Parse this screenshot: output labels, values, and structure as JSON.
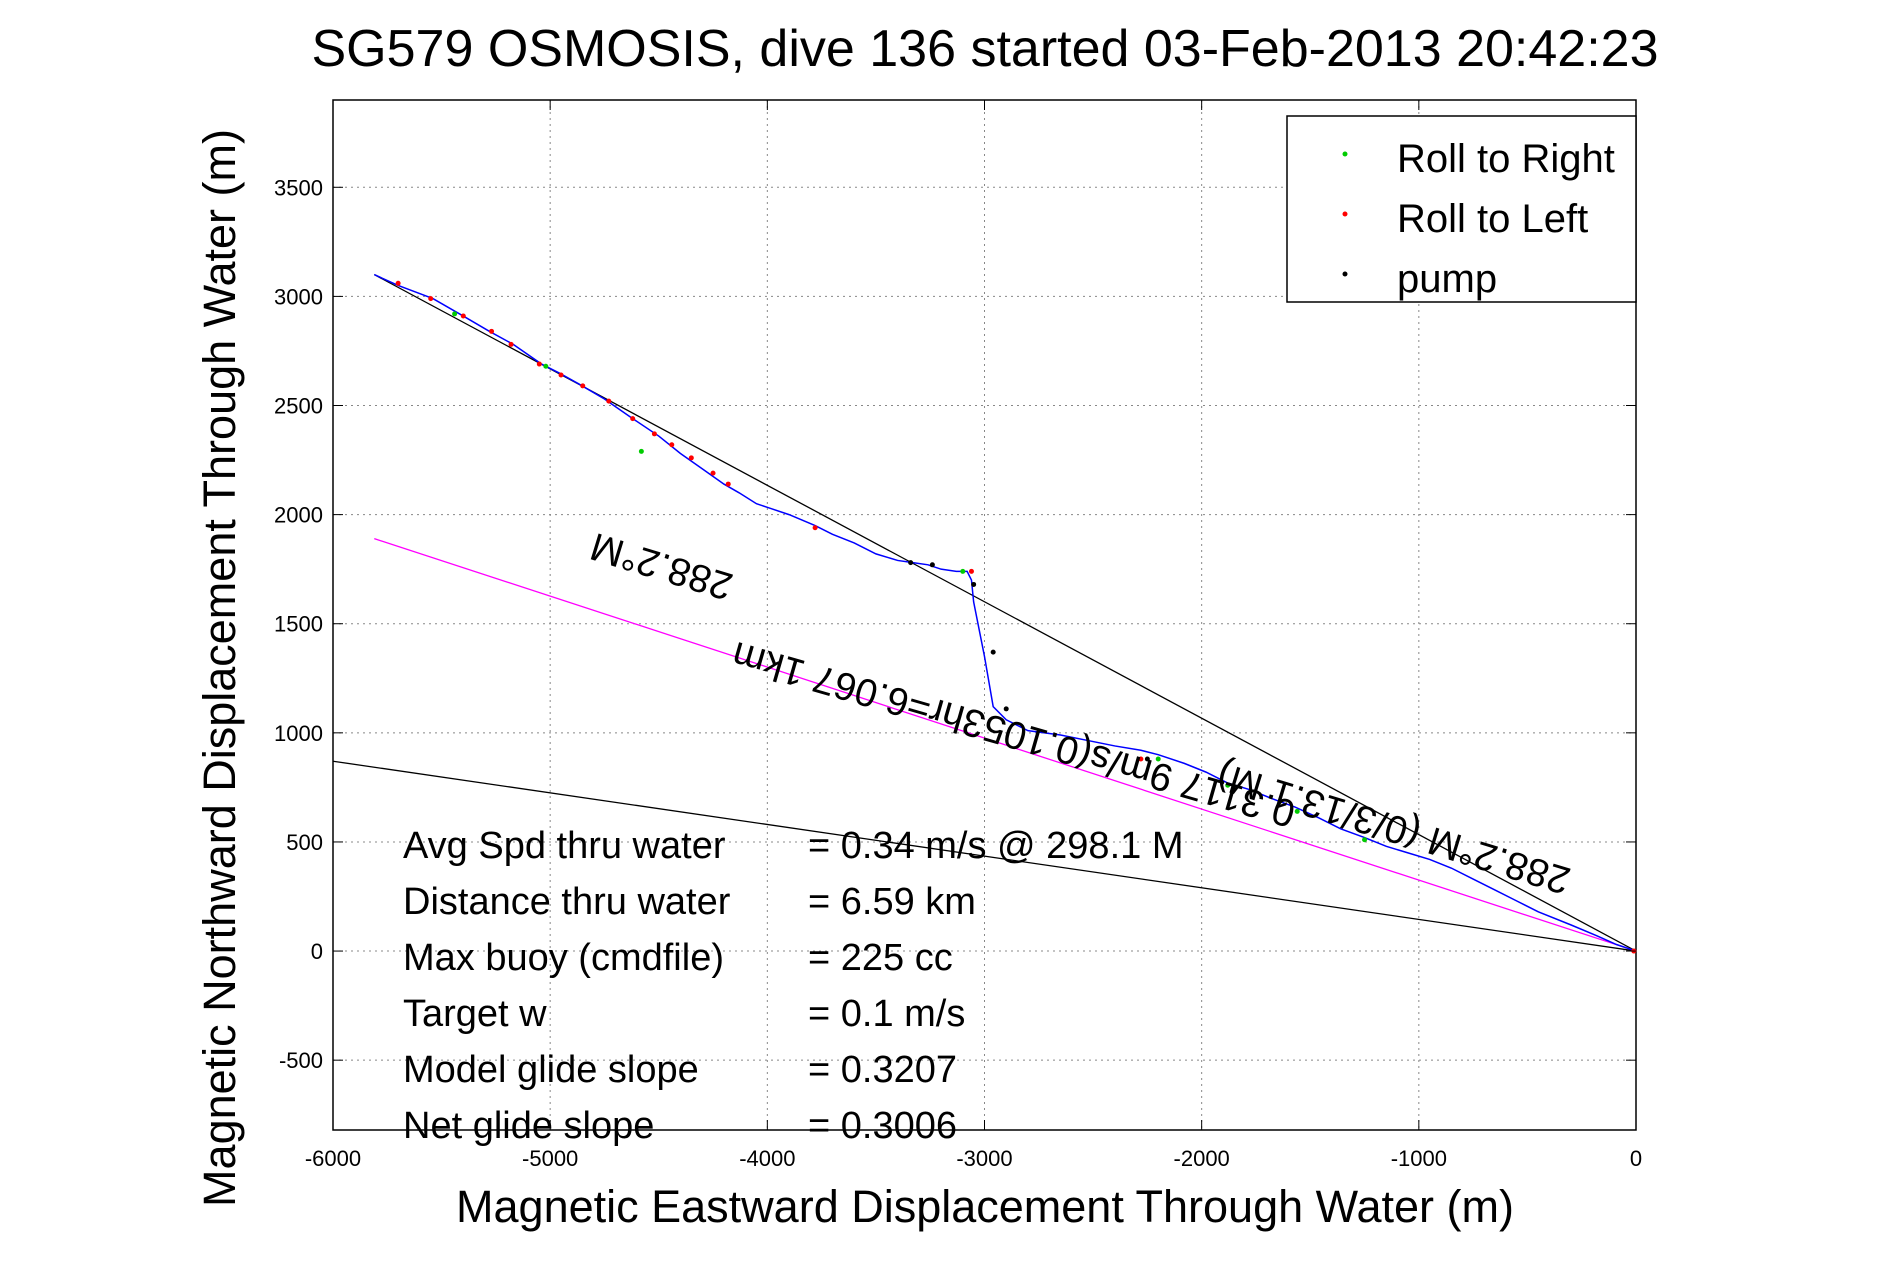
{
  "chart_data": {
    "type": "line",
    "title": "SG579 OSMOSIS, dive 136 started 03-Feb-2013 20:42:23",
    "xlabel": "Magnetic Eastward Displacement Through Water (m)",
    "ylabel": "Magnetic Northward Displacement Through Water (m)",
    "xlim": [
      -6000,
      0
    ],
    "ylim": [
      -820,
      3900
    ],
    "xticks": [
      -6000,
      -5000,
      -4000,
      -3000,
      -2000,
      -1000,
      0
    ],
    "yticks": [
      -500,
      0,
      500,
      1000,
      1500,
      2000,
      2500,
      3000,
      3500
    ],
    "xtick_labels": [
      "-6000",
      "-5000",
      "-4000",
      "-3000",
      "-2000",
      "-1000",
      "0"
    ],
    "ytick_labels": [
      "-500",
      "0",
      "500",
      "1000",
      "1500",
      "2000",
      "2500",
      "3000",
      "3500"
    ],
    "grid": true,
    "legend_position": "top-right",
    "legend": [
      {
        "label": "Roll to Right",
        "color": "#00cc00"
      },
      {
        "label": "Roll to Left",
        "color": "#ff0000"
      },
      {
        "label": "pump",
        "color": "#000000"
      }
    ],
    "track": {
      "color": "#0000ff",
      "x": [
        -5810,
        -5700,
        -5540,
        -5400,
        -5280,
        -5170,
        -5040,
        -4960,
        -4870,
        -4750,
        -4620,
        -4500,
        -4400,
        -4300,
        -4200,
        -4130,
        -4050,
        -3990,
        -3900,
        -3780,
        -3700,
        -3600,
        -3500,
        -3400,
        -3330,
        -3260,
        -3200,
        -3130,
        -3080,
        -3060,
        -3050,
        -3000,
        -2960,
        -2900,
        -2800,
        -2650,
        -2500,
        -2400,
        -2280,
        -2200,
        -2080,
        -1980,
        -1880,
        -1780,
        -1680,
        -1570,
        -1460,
        -1360,
        -1250,
        -1150,
        -1050,
        -950,
        -850,
        -750,
        -650,
        -550,
        -450,
        -300,
        -180,
        -90,
        0
      ],
      "y": [
        3100,
        3050,
        2990,
        2910,
        2840,
        2780,
        2690,
        2650,
        2600,
        2530,
        2440,
        2360,
        2280,
        2210,
        2140,
        2100,
        2050,
        2030,
        2000,
        1950,
        1910,
        1870,
        1820,
        1790,
        1780,
        1770,
        1750,
        1740,
        1740,
        1700,
        1600,
        1350,
        1120,
        1060,
        1010,
        990,
        960,
        940,
        920,
        900,
        860,
        820,
        770,
        740,
        700,
        660,
        610,
        560,
        520,
        480,
        450,
        420,
        380,
        330,
        280,
        230,
        180,
        120,
        70,
        30,
        0
      ]
    },
    "roll_right_points": {
      "color": "#00cc00",
      "x": [
        -5440,
        -5020,
        -4580,
        -3100,
        -2200,
        -1880,
        -1560,
        -1250
      ],
      "y": [
        2920,
        2680,
        2290,
        1740,
        880,
        760,
        640,
        510
      ]
    },
    "roll_left_points": {
      "color": "#ff0000",
      "x": [
        -5700,
        -5550,
        -5400,
        -5270,
        -5180,
        -5050,
        -4950,
        -4850,
        -4730,
        -4620,
        -4520,
        -4440,
        -4350,
        -4250,
        -4180,
        -3780,
        -3060,
        -2280,
        -10
      ],
      "y": [
        3060,
        2990,
        2910,
        2840,
        2780,
        2690,
        2640,
        2590,
        2520,
        2440,
        2370,
        2320,
        2260,
        2190,
        2140,
        1940,
        1740,
        880,
        0
      ]
    },
    "pump_points": {
      "color": "#000000",
      "x": [
        -3340,
        -3240,
        -3050,
        -2960,
        -2900,
        -2250
      ],
      "y": [
        1780,
        1770,
        1680,
        1370,
        1110,
        880
      ]
    },
    "reference_lines": [
      {
        "color": "#000000",
        "x": [
          -5810,
          0
        ],
        "y": [
          3100,
          0
        ]
      },
      {
        "color": "#ff00ff",
        "x": [
          -5810,
          0
        ],
        "y": [
          1890,
          0
        ]
      },
      {
        "color": "#000000",
        "x": [
          -6000,
          0
        ],
        "y": [
          870,
          0
        ]
      }
    ],
    "annotations": [
      {
        "text": "288.2°M",
        "x": -4470,
        "y": 1820,
        "rotation": 197
      },
      {
        "text": "0.3117 9m/s(0.1053hr=6.067 1km",
        "x": -2850,
        "y": 1050,
        "rotation": 196
      },
      {
        "text": "288.2°M (0/3/13.1 M)",
        "x": -1100,
        "y": 620,
        "rotation": 197
      }
    ],
    "stats": [
      {
        "label": "Avg Spd thru water",
        "value": "=  0.34 m/s @ 298.1  M"
      },
      {
        "label": "Distance thru water",
        "value": "=  6.59 km"
      },
      {
        "label": "Max buoy (cmdfile)",
        "value": "= 225 cc"
      },
      {
        "label": "Target w",
        "value": "= 0.1 m/s"
      },
      {
        "label": "Model glide slope",
        "value": "= 0.3207"
      },
      {
        "label": "Net glide slope",
        "value": "= 0.3006"
      }
    ]
  }
}
